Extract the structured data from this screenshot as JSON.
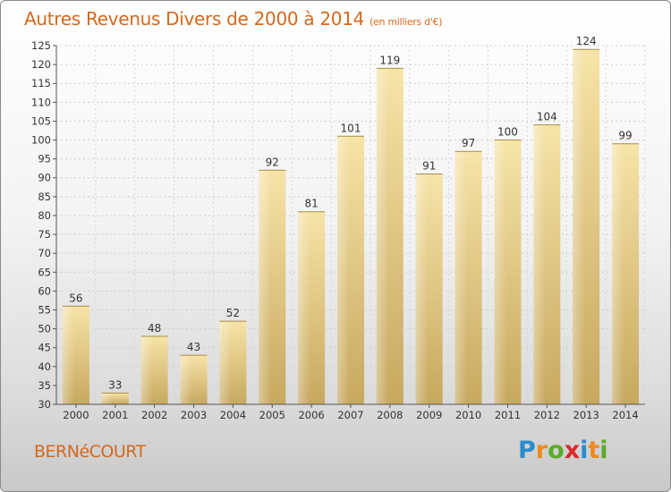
{
  "header": {
    "title": "Autres Revenus Divers de 2000 à 2014",
    "subtitle": "(en milliers d'€)"
  },
  "footer": {
    "town": "BERNéCOURT",
    "logo_letters": [
      "P",
      "r",
      "o",
      "x",
      "i",
      "t",
      "i"
    ]
  },
  "colors": {
    "title": "#d2691e",
    "bar_light": "#f6e2a4",
    "bar_dark": "#c8a85e"
  },
  "chart_data": {
    "type": "bar",
    "title": "Autres Revenus Divers de 2000 à 2014",
    "subtitle": "(en milliers d'€)",
    "xlabel": "",
    "ylabel": "",
    "categories": [
      "2000",
      "2001",
      "2002",
      "2003",
      "2004",
      "2005",
      "2006",
      "2007",
      "2008",
      "2009",
      "2010",
      "2011",
      "2012",
      "2013",
      "2014"
    ],
    "values": [
      56,
      33,
      48,
      43,
      52,
      92,
      81,
      101,
      119,
      91,
      97,
      100,
      104,
      124,
      99
    ],
    "ylim": [
      30,
      125
    ],
    "yticks": [
      30,
      35,
      40,
      45,
      50,
      55,
      60,
      65,
      70,
      75,
      80,
      85,
      90,
      95,
      100,
      105,
      110,
      115,
      120,
      125
    ],
    "grid": true,
    "data_labels": true
  }
}
